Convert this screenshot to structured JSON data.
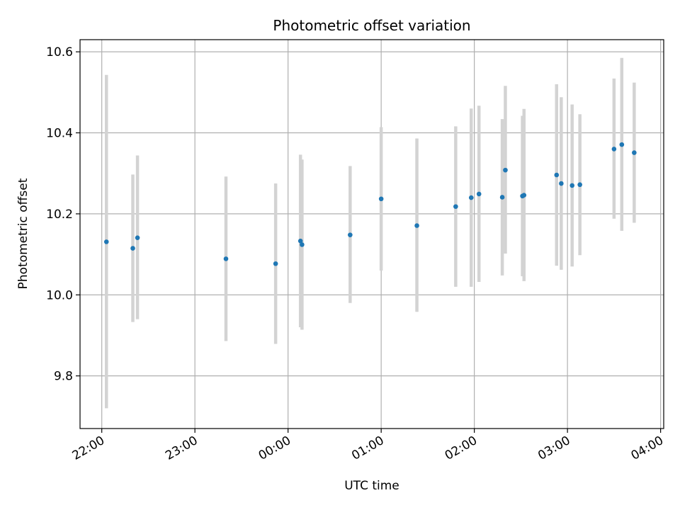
{
  "chart_data": {
    "type": "scatter",
    "title": "Photometric offset variation",
    "xlabel": "UTC time",
    "ylabel": "Photometric offset",
    "grid": true,
    "x_axis": {
      "kind": "time",
      "start": "21:46",
      "end": "04:02",
      "ticks": [
        "22:00",
        "23:00",
        "00:00",
        "01:00",
        "02:00",
        "03:00",
        "04:00"
      ]
    },
    "ylim": [
      9.67,
      10.63
    ],
    "yticks": [
      "9.8",
      "10.0",
      "10.2",
      "10.4",
      "10.6"
    ],
    "marker_color": "#1f77b4",
    "errorbar_color": "#d3d3d3",
    "points": [
      {
        "t": "22:03",
        "y": 10.131,
        "low": 9.72,
        "high": 10.543
      },
      {
        "t": "22:20",
        "y": 10.115,
        "low": 9.933,
        "high": 10.297
      },
      {
        "t": "22:23",
        "y": 10.141,
        "low": 9.94,
        "high": 10.344
      },
      {
        "t": "23:20",
        "y": 10.089,
        "low": 9.886,
        "high": 10.292
      },
      {
        "t": "23:52",
        "y": 10.077,
        "low": 9.879,
        "high": 10.275
      },
      {
        "t": "00:08",
        "y": 10.133,
        "low": 9.92,
        "high": 10.346
      },
      {
        "t": "00:09",
        "y": 10.124,
        "low": 9.914,
        "high": 10.334
      },
      {
        "t": "00:40",
        "y": 10.148,
        "low": 9.98,
        "high": 10.318
      },
      {
        "t": "01:00",
        "y": 10.237,
        "low": 10.06,
        "high": 10.414
      },
      {
        "t": "01:23",
        "y": 10.171,
        "low": 9.958,
        "high": 10.386
      },
      {
        "t": "01:48",
        "y": 10.218,
        "low": 10.02,
        "high": 10.416
      },
      {
        "t": "01:58",
        "y": 10.24,
        "low": 10.02,
        "high": 10.46
      },
      {
        "t": "02:03",
        "y": 10.249,
        "low": 10.032,
        "high": 10.467
      },
      {
        "t": "02:18",
        "y": 10.241,
        "low": 10.048,
        "high": 10.434
      },
      {
        "t": "02:20",
        "y": 10.308,
        "low": 10.102,
        "high": 10.516
      },
      {
        "t": "02:31",
        "y": 10.244,
        "low": 10.046,
        "high": 10.442
      },
      {
        "t": "02:32",
        "y": 10.246,
        "low": 10.034,
        "high": 10.459
      },
      {
        "t": "02:53",
        "y": 10.296,
        "low": 10.072,
        "high": 10.52
      },
      {
        "t": "02:56",
        "y": 10.275,
        "low": 10.062,
        "high": 10.488
      },
      {
        "t": "03:03",
        "y": 10.27,
        "low": 10.07,
        "high": 10.47
      },
      {
        "t": "03:08",
        "y": 10.272,
        "low": 10.098,
        "high": 10.446
      },
      {
        "t": "03:30",
        "y": 10.36,
        "low": 10.188,
        "high": 10.534
      },
      {
        "t": "03:35",
        "y": 10.371,
        "low": 10.158,
        "high": 10.585
      },
      {
        "t": "03:43",
        "y": 10.351,
        "low": 10.178,
        "high": 10.524
      }
    ]
  }
}
